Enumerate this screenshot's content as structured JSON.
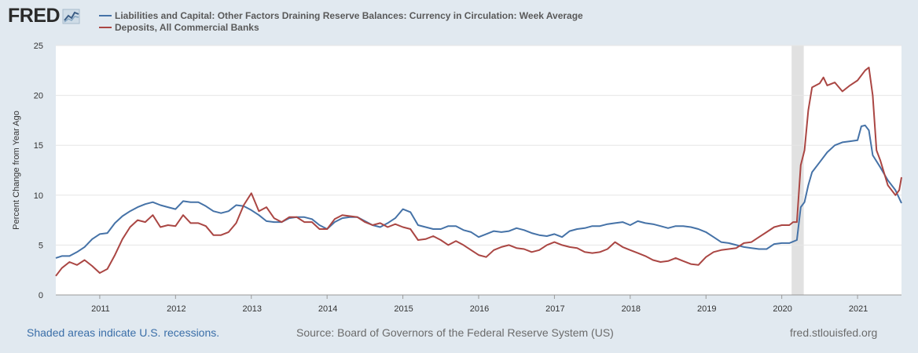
{
  "header": {
    "logo_text": "FRED"
  },
  "colors": {
    "series_blue": "#4572a7",
    "series_red": "#aa4643",
    "recession_band": "#e1e1e1",
    "background": "#e1e9f0",
    "plot_bg": "#ffffff",
    "grid": "#e6e6e6"
  },
  "footer": {
    "recession_note": "Shaded areas indicate U.S. recessions.",
    "source": "Source: Board of Governors of the Federal Reserve System (US)",
    "url": "fred.stlouisfed.org"
  },
  "chart_data": {
    "type": "line",
    "title": "",
    "xlabel": "",
    "ylabel": "Percent Change from Year Ago",
    "xlim": [
      2010.42,
      2021.58
    ],
    "ylim": [
      0,
      25
    ],
    "yticks": [
      0,
      5,
      10,
      15,
      20,
      25
    ],
    "xticks": [
      2011,
      2012,
      2013,
      2014,
      2015,
      2016,
      2017,
      2018,
      2019,
      2020,
      2021
    ],
    "grid": true,
    "legend_position": "top-left",
    "recessions": [
      [
        2020.13,
        2020.29
      ]
    ],
    "series": [
      {
        "name": "Liabilities and Capital: Other Factors Draining Reserve Balances: Currency in Circulation: Week Average",
        "color": "#4572a7",
        "points": [
          [
            2010.42,
            3.7
          ],
          [
            2010.5,
            3.9
          ],
          [
            2010.6,
            3.9
          ],
          [
            2010.7,
            4.3
          ],
          [
            2010.8,
            4.8
          ],
          [
            2010.9,
            5.6
          ],
          [
            2011.0,
            6.1
          ],
          [
            2011.1,
            6.2
          ],
          [
            2011.2,
            7.2
          ],
          [
            2011.3,
            7.9
          ],
          [
            2011.4,
            8.4
          ],
          [
            2011.5,
            8.8
          ],
          [
            2011.6,
            9.1
          ],
          [
            2011.7,
            9.3
          ],
          [
            2011.8,
            9.0
          ],
          [
            2011.9,
            8.8
          ],
          [
            2012.0,
            8.6
          ],
          [
            2012.1,
            9.4
          ],
          [
            2012.2,
            9.3
          ],
          [
            2012.3,
            9.3
          ],
          [
            2012.4,
            8.9
          ],
          [
            2012.5,
            8.4
          ],
          [
            2012.6,
            8.2
          ],
          [
            2012.7,
            8.4
          ],
          [
            2012.8,
            9.0
          ],
          [
            2012.9,
            8.9
          ],
          [
            2013.0,
            8.5
          ],
          [
            2013.1,
            8.0
          ],
          [
            2013.2,
            7.4
          ],
          [
            2013.3,
            7.3
          ],
          [
            2013.4,
            7.3
          ],
          [
            2013.5,
            7.7
          ],
          [
            2013.6,
            7.8
          ],
          [
            2013.7,
            7.8
          ],
          [
            2013.8,
            7.6
          ],
          [
            2013.9,
            7.0
          ],
          [
            2014.0,
            6.6
          ],
          [
            2014.1,
            7.3
          ],
          [
            2014.2,
            7.7
          ],
          [
            2014.3,
            7.8
          ],
          [
            2014.4,
            7.8
          ],
          [
            2014.5,
            7.4
          ],
          [
            2014.6,
            7.0
          ],
          [
            2014.7,
            6.8
          ],
          [
            2014.8,
            7.2
          ],
          [
            2014.9,
            7.7
          ],
          [
            2015.0,
            8.6
          ],
          [
            2015.1,
            8.3
          ],
          [
            2015.2,
            7.0
          ],
          [
            2015.3,
            6.8
          ],
          [
            2015.4,
            6.6
          ],
          [
            2015.5,
            6.6
          ],
          [
            2015.6,
            6.9
          ],
          [
            2015.7,
            6.9
          ],
          [
            2015.8,
            6.5
          ],
          [
            2015.9,
            6.3
          ],
          [
            2016.0,
            5.8
          ],
          [
            2016.1,
            6.1
          ],
          [
            2016.2,
            6.4
          ],
          [
            2016.3,
            6.3
          ],
          [
            2016.4,
            6.4
          ],
          [
            2016.5,
            6.7
          ],
          [
            2016.6,
            6.5
          ],
          [
            2016.7,
            6.2
          ],
          [
            2016.8,
            6.0
          ],
          [
            2016.9,
            5.9
          ],
          [
            2017.0,
            6.1
          ],
          [
            2017.1,
            5.8
          ],
          [
            2017.2,
            6.4
          ],
          [
            2017.3,
            6.6
          ],
          [
            2017.4,
            6.7
          ],
          [
            2017.5,
            6.9
          ],
          [
            2017.6,
            6.9
          ],
          [
            2017.7,
            7.1
          ],
          [
            2017.8,
            7.2
          ],
          [
            2017.9,
            7.3
          ],
          [
            2018.0,
            7.0
          ],
          [
            2018.1,
            7.4
          ],
          [
            2018.2,
            7.2
          ],
          [
            2018.3,
            7.1
          ],
          [
            2018.4,
            6.9
          ],
          [
            2018.5,
            6.7
          ],
          [
            2018.6,
            6.9
          ],
          [
            2018.7,
            6.9
          ],
          [
            2018.8,
            6.8
          ],
          [
            2018.9,
            6.6
          ],
          [
            2019.0,
            6.3
          ],
          [
            2019.1,
            5.8
          ],
          [
            2019.2,
            5.3
          ],
          [
            2019.3,
            5.2
          ],
          [
            2019.4,
            5.0
          ],
          [
            2019.5,
            4.8
          ],
          [
            2019.6,
            4.7
          ],
          [
            2019.7,
            4.6
          ],
          [
            2019.8,
            4.6
          ],
          [
            2019.9,
            5.1
          ],
          [
            2020.0,
            5.2
          ],
          [
            2020.1,
            5.2
          ],
          [
            2020.2,
            5.5
          ],
          [
            2020.25,
            8.8
          ],
          [
            2020.3,
            9.3
          ],
          [
            2020.35,
            11.0
          ],
          [
            2020.4,
            12.3
          ],
          [
            2020.5,
            13.3
          ],
          [
            2020.6,
            14.3
          ],
          [
            2020.7,
            15.0
          ],
          [
            2020.8,
            15.3
          ],
          [
            2020.9,
            15.4
          ],
          [
            2021.0,
            15.5
          ],
          [
            2021.05,
            16.9
          ],
          [
            2021.1,
            17.0
          ],
          [
            2021.15,
            16.5
          ],
          [
            2021.2,
            14.0
          ],
          [
            2021.3,
            12.8
          ],
          [
            2021.4,
            11.5
          ],
          [
            2021.5,
            10.5
          ],
          [
            2021.58,
            9.2
          ]
        ]
      },
      {
        "name": "Deposits, All Commercial Banks",
        "color": "#aa4643",
        "points": [
          [
            2010.42,
            1.9
          ],
          [
            2010.5,
            2.7
          ],
          [
            2010.6,
            3.3
          ],
          [
            2010.7,
            3.0
          ],
          [
            2010.8,
            3.5
          ],
          [
            2010.9,
            2.9
          ],
          [
            2011.0,
            2.2
          ],
          [
            2011.1,
            2.6
          ],
          [
            2011.2,
            4.0
          ],
          [
            2011.3,
            5.6
          ],
          [
            2011.4,
            6.8
          ],
          [
            2011.5,
            7.5
          ],
          [
            2011.6,
            7.3
          ],
          [
            2011.7,
            8.0
          ],
          [
            2011.8,
            6.8
          ],
          [
            2011.9,
            7.0
          ],
          [
            2012.0,
            6.9
          ],
          [
            2012.1,
            8.0
          ],
          [
            2012.2,
            7.2
          ],
          [
            2012.3,
            7.2
          ],
          [
            2012.4,
            6.9
          ],
          [
            2012.5,
            6.0
          ],
          [
            2012.6,
            6.0
          ],
          [
            2012.7,
            6.3
          ],
          [
            2012.8,
            7.2
          ],
          [
            2012.9,
            9.0
          ],
          [
            2013.0,
            10.2
          ],
          [
            2013.1,
            8.4
          ],
          [
            2013.2,
            8.8
          ],
          [
            2013.3,
            7.7
          ],
          [
            2013.4,
            7.3
          ],
          [
            2013.5,
            7.8
          ],
          [
            2013.6,
            7.8
          ],
          [
            2013.7,
            7.3
          ],
          [
            2013.8,
            7.3
          ],
          [
            2013.9,
            6.6
          ],
          [
            2014.0,
            6.6
          ],
          [
            2014.1,
            7.6
          ],
          [
            2014.2,
            8.0
          ],
          [
            2014.3,
            7.9
          ],
          [
            2014.4,
            7.8
          ],
          [
            2014.5,
            7.3
          ],
          [
            2014.6,
            7.0
          ],
          [
            2014.7,
            7.2
          ],
          [
            2014.8,
            6.8
          ],
          [
            2014.9,
            7.1
          ],
          [
            2015.0,
            6.8
          ],
          [
            2015.1,
            6.6
          ],
          [
            2015.2,
            5.5
          ],
          [
            2015.3,
            5.6
          ],
          [
            2015.4,
            5.9
          ],
          [
            2015.5,
            5.5
          ],
          [
            2015.6,
            5.0
          ],
          [
            2015.7,
            5.4
          ],
          [
            2015.8,
            5.0
          ],
          [
            2015.9,
            4.5
          ],
          [
            2016.0,
            4.0
          ],
          [
            2016.1,
            3.8
          ],
          [
            2016.2,
            4.5
          ],
          [
            2016.3,
            4.8
          ],
          [
            2016.4,
            5.0
          ],
          [
            2016.5,
            4.7
          ],
          [
            2016.6,
            4.6
          ],
          [
            2016.7,
            4.3
          ],
          [
            2016.8,
            4.5
          ],
          [
            2016.9,
            5.0
          ],
          [
            2017.0,
            5.3
          ],
          [
            2017.1,
            5.0
          ],
          [
            2017.2,
            4.8
          ],
          [
            2017.3,
            4.7
          ],
          [
            2017.4,
            4.3
          ],
          [
            2017.5,
            4.2
          ],
          [
            2017.6,
            4.3
          ],
          [
            2017.7,
            4.6
          ],
          [
            2017.8,
            5.3
          ],
          [
            2017.9,
            4.8
          ],
          [
            2018.0,
            4.5
          ],
          [
            2018.1,
            4.2
          ],
          [
            2018.2,
            3.9
          ],
          [
            2018.3,
            3.5
          ],
          [
            2018.4,
            3.3
          ],
          [
            2018.5,
            3.4
          ],
          [
            2018.6,
            3.7
          ],
          [
            2018.7,
            3.4
          ],
          [
            2018.8,
            3.1
          ],
          [
            2018.9,
            3.0
          ],
          [
            2019.0,
            3.8
          ],
          [
            2019.1,
            4.3
          ],
          [
            2019.2,
            4.5
          ],
          [
            2019.3,
            4.6
          ],
          [
            2019.4,
            4.7
          ],
          [
            2019.5,
            5.2
          ],
          [
            2019.6,
            5.3
          ],
          [
            2019.7,
            5.8
          ],
          [
            2019.8,
            6.3
          ],
          [
            2019.9,
            6.8
          ],
          [
            2020.0,
            7.0
          ],
          [
            2020.1,
            7.0
          ],
          [
            2020.15,
            7.3
          ],
          [
            2020.2,
            7.3
          ],
          [
            2020.25,
            13.0
          ],
          [
            2020.3,
            14.5
          ],
          [
            2020.35,
            18.5
          ],
          [
            2020.4,
            20.8
          ],
          [
            2020.5,
            21.2
          ],
          [
            2020.55,
            21.8
          ],
          [
            2020.6,
            21.0
          ],
          [
            2020.7,
            21.3
          ],
          [
            2020.8,
            20.4
          ],
          [
            2020.9,
            21.0
          ],
          [
            2021.0,
            21.5
          ],
          [
            2021.1,
            22.5
          ],
          [
            2021.15,
            22.8
          ],
          [
            2021.2,
            20.0
          ],
          [
            2021.25,
            14.5
          ],
          [
            2021.3,
            13.5
          ],
          [
            2021.4,
            11.0
          ],
          [
            2021.5,
            10.0
          ],
          [
            2021.55,
            10.5
          ],
          [
            2021.58,
            11.8
          ]
        ]
      }
    ]
  }
}
